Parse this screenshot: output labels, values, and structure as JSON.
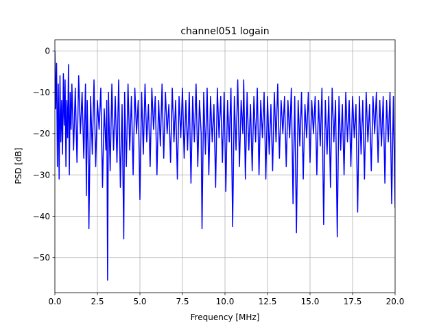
{
  "chart_data": {
    "type": "line",
    "title": "channel051 logain",
    "xlabel": "Frequency [MHz]",
    "ylabel": "PSD [dB]",
    "xlim": [
      0,
      20
    ],
    "ylim": [
      -58.5,
      2.7
    ],
    "xticks": [
      0,
      2.5,
      5,
      7.5,
      10,
      12.5,
      15,
      17.5,
      20
    ],
    "xtick_labels": [
      "0.0",
      "2.5",
      "5.0",
      "7.5",
      "10.0",
      "12.5",
      "15.0",
      "17.5",
      "20.0"
    ],
    "yticks": [
      0,
      -10,
      -20,
      -30,
      -40,
      -50
    ],
    "ytick_labels": [
      "0",
      "−10",
      "−20",
      "−30",
      "−40",
      "−50"
    ],
    "grid": true,
    "legend": "none",
    "series": [
      {
        "color": "#0000ff",
        "points": [
          [
            0.0,
            0.0
          ],
          [
            0.05,
            -14
          ],
          [
            0.1,
            -3
          ],
          [
            0.15,
            -28
          ],
          [
            0.2,
            -8
          ],
          [
            0.25,
            -31
          ],
          [
            0.3,
            -6
          ],
          [
            0.35,
            -22
          ],
          [
            0.4,
            -12
          ],
          [
            0.45,
            -25
          ],
          [
            0.5,
            -5.5
          ],
          [
            0.55,
            -18
          ],
          [
            0.6,
            -7
          ],
          [
            0.65,
            -28
          ],
          [
            0.7,
            -12
          ],
          [
            0.75,
            -21
          ],
          [
            0.8,
            -3.3
          ],
          [
            0.85,
            -30
          ],
          [
            0.9,
            -10
          ],
          [
            0.95,
            -19
          ],
          [
            1.0,
            -8
          ],
          [
            1.1,
            -24
          ],
          [
            1.2,
            -9
          ],
          [
            1.3,
            -27
          ],
          [
            1.4,
            -6
          ],
          [
            1.5,
            -20
          ],
          [
            1.6,
            -10
          ],
          [
            1.7,
            -26
          ],
          [
            1.8,
            -8
          ],
          [
            1.85,
            -35
          ],
          [
            1.9,
            -12
          ],
          [
            1.95,
            -22
          ],
          [
            2.0,
            -43
          ],
          [
            2.1,
            -11
          ],
          [
            2.2,
            -25
          ],
          [
            2.3,
            -7
          ],
          [
            2.4,
            -28
          ],
          [
            2.5,
            -12
          ],
          [
            2.6,
            -19
          ],
          [
            2.7,
            -9
          ],
          [
            2.8,
            -33
          ],
          [
            2.9,
            -14
          ],
          [
            3.0,
            -24
          ],
          [
            3.05,
            -12
          ],
          [
            3.1,
            -55.5
          ],
          [
            3.15,
            -10
          ],
          [
            3.25,
            -29
          ],
          [
            3.35,
            -8
          ],
          [
            3.45,
            -24
          ],
          [
            3.55,
            -11
          ],
          [
            3.65,
            -27
          ],
          [
            3.75,
            -7
          ],
          [
            3.85,
            -33
          ],
          [
            3.95,
            -13
          ],
          [
            4.05,
            -45.5
          ],
          [
            4.1,
            -10
          ],
          [
            4.2,
            -28
          ],
          [
            4.3,
            -8
          ],
          [
            4.4,
            -24
          ],
          [
            4.5,
            -11
          ],
          [
            4.6,
            -30
          ],
          [
            4.7,
            -9
          ],
          [
            4.8,
            -20
          ],
          [
            4.9,
            -12
          ],
          [
            5.0,
            -36
          ],
          [
            5.1,
            -10
          ],
          [
            5.2,
            -25
          ],
          [
            5.3,
            -8
          ],
          [
            5.4,
            -22
          ],
          [
            5.5,
            -13
          ],
          [
            5.6,
            -28
          ],
          [
            5.7,
            -9
          ],
          [
            5.8,
            -19
          ],
          [
            5.9,
            -11
          ],
          [
            6.0,
            -30
          ],
          [
            6.1,
            -12
          ],
          [
            6.2,
            -23
          ],
          [
            6.3,
            -8
          ],
          [
            6.4,
            -26
          ],
          [
            6.5,
            -10
          ],
          [
            6.6,
            -20
          ],
          [
            6.7,
            -13
          ],
          [
            6.8,
            -27
          ],
          [
            6.9,
            -9
          ],
          [
            7.0,
            -22
          ],
          [
            7.1,
            -12
          ],
          [
            7.2,
            -31
          ],
          [
            7.3,
            -11
          ],
          [
            7.4,
            -21
          ],
          [
            7.5,
            -9
          ],
          [
            7.6,
            -26
          ],
          [
            7.7,
            -12
          ],
          [
            7.8,
            -24
          ],
          [
            7.9,
            -10
          ],
          [
            8.0,
            -32
          ],
          [
            8.1,
            -11
          ],
          [
            8.2,
            -22
          ],
          [
            8.3,
            -8
          ],
          [
            8.4,
            -28
          ],
          [
            8.5,
            -12
          ],
          [
            8.6,
            -20
          ],
          [
            8.65,
            -43
          ],
          [
            8.75,
            -10
          ],
          [
            8.85,
            -25
          ],
          [
            8.95,
            -9
          ],
          [
            9.05,
            -30
          ],
          [
            9.15,
            -11
          ],
          [
            9.25,
            -22
          ],
          [
            9.35,
            -13
          ],
          [
            9.45,
            -33
          ],
          [
            9.55,
            -9
          ],
          [
            9.65,
            -21
          ],
          [
            9.75,
            -11
          ],
          [
            9.85,
            -27
          ],
          [
            9.95,
            -10
          ],
          [
            10.05,
            -34
          ],
          [
            10.15,
            -12
          ],
          [
            10.25,
            -22
          ],
          [
            10.35,
            -9
          ],
          [
            10.45,
            -42.5
          ],
          [
            10.55,
            -11
          ],
          [
            10.65,
            -24
          ],
          [
            10.75,
            -7
          ],
          [
            10.85,
            -28
          ],
          [
            10.95,
            -12
          ],
          [
            11.05,
            -20
          ],
          [
            11.1,
            -7
          ],
          [
            11.2,
            -31
          ],
          [
            11.3,
            -10
          ],
          [
            11.4,
            -24
          ],
          [
            11.5,
            -13
          ],
          [
            11.6,
            -29
          ],
          [
            11.7,
            -11
          ],
          [
            11.8,
            -22
          ],
          [
            11.9,
            -9
          ],
          [
            12.0,
            -30
          ],
          [
            12.1,
            -12
          ],
          [
            12.2,
            -21
          ],
          [
            12.3,
            -10
          ],
          [
            12.4,
            -31
          ],
          [
            12.5,
            -11
          ],
          [
            12.6,
            -25
          ],
          [
            12.7,
            -13
          ],
          [
            12.8,
            -29
          ],
          [
            12.9,
            -10
          ],
          [
            13.0,
            -22
          ],
          [
            13.1,
            -8
          ],
          [
            13.2,
            -26
          ],
          [
            13.3,
            -12
          ],
          [
            13.4,
            -20
          ],
          [
            13.5,
            -11
          ],
          [
            13.6,
            -28
          ],
          [
            13.7,
            -12
          ],
          [
            13.8,
            -21
          ],
          [
            13.9,
            -9
          ],
          [
            14.0,
            -37
          ],
          [
            14.1,
            -11
          ],
          [
            14.2,
            -44
          ],
          [
            14.3,
            -12
          ],
          [
            14.4,
            -23
          ],
          [
            14.5,
            -10
          ],
          [
            14.6,
            -31
          ],
          [
            14.7,
            -13
          ],
          [
            14.8,
            -21
          ],
          [
            14.9,
            -10
          ],
          [
            15.0,
            -27
          ],
          [
            15.1,
            -12
          ],
          [
            15.2,
            -20
          ],
          [
            15.3,
            -11
          ],
          [
            15.4,
            -30
          ],
          [
            15.5,
            -12
          ],
          [
            15.6,
            -23
          ],
          [
            15.7,
            -9
          ],
          [
            15.8,
            -42
          ],
          [
            15.9,
            -12
          ],
          [
            16.0,
            -25
          ],
          [
            16.1,
            -11
          ],
          [
            16.2,
            -33
          ],
          [
            16.3,
            -9
          ],
          [
            16.4,
            -22
          ],
          [
            16.5,
            -12
          ],
          [
            16.6,
            -45
          ],
          [
            16.7,
            -11
          ],
          [
            16.8,
            -24
          ],
          [
            16.9,
            -13
          ],
          [
            17.0,
            -30
          ],
          [
            17.1,
            -10
          ],
          [
            17.2,
            -22
          ],
          [
            17.3,
            -12
          ],
          [
            17.4,
            -28
          ],
          [
            17.5,
            -11
          ],
          [
            17.6,
            -21
          ],
          [
            17.7,
            -13
          ],
          [
            17.8,
            -39
          ],
          [
            17.9,
            -11
          ],
          [
            18.0,
            -25
          ],
          [
            18.1,
            -12
          ],
          [
            18.2,
            -31
          ],
          [
            18.3,
            -10
          ],
          [
            18.4,
            -22
          ],
          [
            18.5,
            -13
          ],
          [
            18.6,
            -29
          ],
          [
            18.7,
            -11
          ],
          [
            18.8,
            -20
          ],
          [
            18.9,
            -10
          ],
          [
            19.0,
            -27
          ],
          [
            19.1,
            -12
          ],
          [
            19.2,
            -23
          ],
          [
            19.3,
            -11
          ],
          [
            19.4,
            -32
          ],
          [
            19.5,
            -12
          ],
          [
            19.6,
            -22
          ],
          [
            19.7,
            -10
          ],
          [
            19.8,
            -37
          ],
          [
            19.9,
            -11
          ],
          [
            20.0,
            -38
          ]
        ]
      }
    ]
  }
}
